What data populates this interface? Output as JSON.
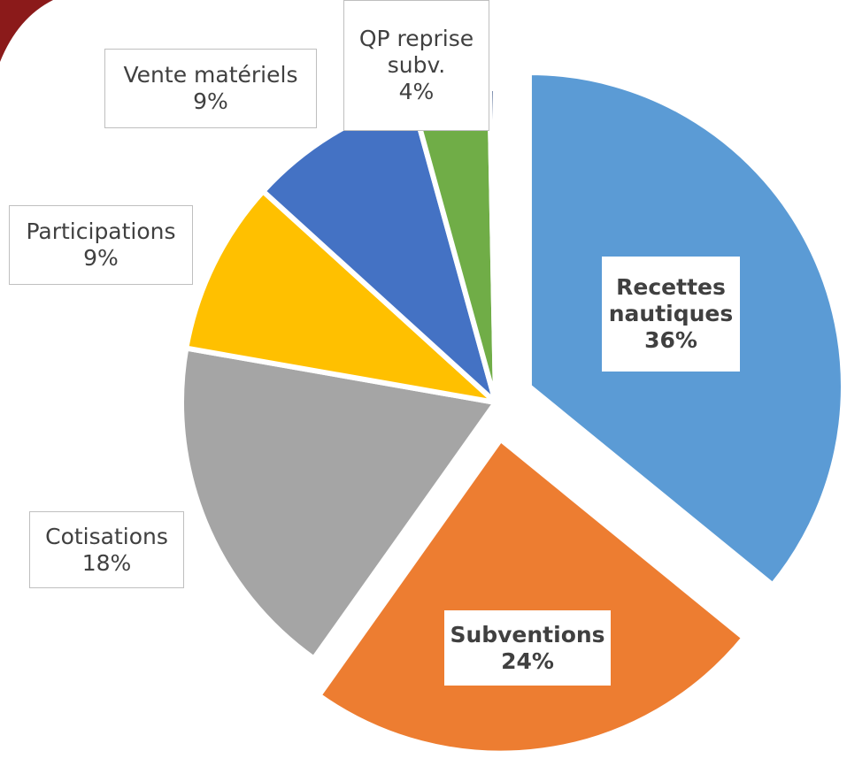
{
  "chart_data": {
    "type": "pie",
    "categories": [
      "Recettes nautiques",
      "Subventions",
      "Cotisations",
      "Participations",
      "Vente matériels",
      "QP reprise subv.",
      null
    ],
    "values": [
      36,
      24,
      18,
      9,
      9,
      4,
      0.3
    ],
    "value_labels": [
      "36%",
      "24%",
      "18%",
      "9%",
      "9%",
      "4%",
      null
    ],
    "colors": [
      "#5b9bd5",
      "#ed7d31",
      "#a5a5a5",
      "#ffc000",
      "#4472c4",
      "#70ad47",
      "#264478"
    ]
  }
}
